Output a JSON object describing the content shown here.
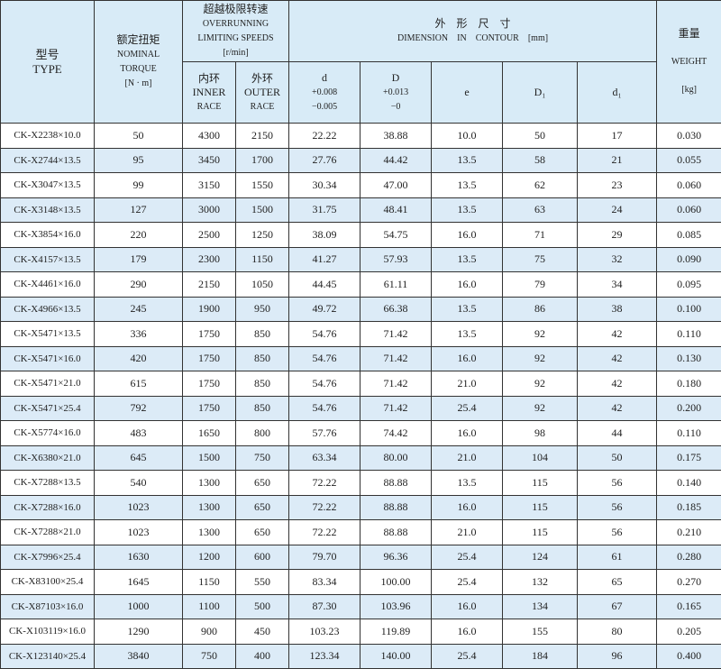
{
  "header": {
    "type_cn": "型号",
    "type_en": "TYPE",
    "torque_cn": "额定扭矩",
    "torque_en1": "NOMINAL",
    "torque_en2": "TORQUE",
    "torque_unit": "[N · m]",
    "speed_cn": "超越极限转速",
    "speed_en1": "OVERRUNNING",
    "speed_en2": "LIMITING SPEEDS",
    "speed_unit": "[r/min]",
    "inner_cn": "内环",
    "inner_en1": "INNER",
    "inner_en2": "RACE",
    "outer_cn": "外环",
    "outer_en1": "OUTER",
    "outer_en2": "RACE",
    "dim_cn": "外　形　尺　寸",
    "dim_en": "DIMENSION　IN　CONTOUR　[mm]",
    "d": "d",
    "d_tol1": "+0.008",
    "d_tol2": "−0.005",
    "D": "D",
    "D_tol1": "+0.013",
    "D_tol2": "−0",
    "e": "e",
    "D1": "D₁",
    "d1": "d₁",
    "weight_cn": "重量",
    "weight_en": "WEIGHT",
    "weight_unit": "[kg]"
  },
  "rows": [
    [
      "CK-X2238×10.0",
      "50",
      "4300",
      "2150",
      "22.22",
      "38.88",
      "10.0",
      "50",
      "17",
      "0.030"
    ],
    [
      "CK-X2744×13.5",
      "95",
      "3450",
      "1700",
      "27.76",
      "44.42",
      "13.5",
      "58",
      "21",
      "0.055"
    ],
    [
      "CK-X3047×13.5",
      "99",
      "3150",
      "1550",
      "30.34",
      "47.00",
      "13.5",
      "62",
      "23",
      "0.060"
    ],
    [
      "CK-X3148×13.5",
      "127",
      "3000",
      "1500",
      "31.75",
      "48.41",
      "13.5",
      "63",
      "24",
      "0.060"
    ],
    [
      "CK-X3854×16.0",
      "220",
      "2500",
      "1250",
      "38.09",
      "54.75",
      "16.0",
      "71",
      "29",
      "0.085"
    ],
    [
      "CK-X4157×13.5",
      "179",
      "2300",
      "1150",
      "41.27",
      "57.93",
      "13.5",
      "75",
      "32",
      "0.090"
    ],
    [
      "CK-X4461×16.0",
      "290",
      "2150",
      "1050",
      "44.45",
      "61.11",
      "16.0",
      "79",
      "34",
      "0.095"
    ],
    [
      "CK-X4966×13.5",
      "245",
      "1900",
      "950",
      "49.72",
      "66.38",
      "13.5",
      "86",
      "38",
      "0.100"
    ],
    [
      "CK-X5471×13.5",
      "336",
      "1750",
      "850",
      "54.76",
      "71.42",
      "13.5",
      "92",
      "42",
      "0.110"
    ],
    [
      "CK-X5471×16.0",
      "420",
      "1750",
      "850",
      "54.76",
      "71.42",
      "16.0",
      "92",
      "42",
      "0.130"
    ],
    [
      "CK-X5471×21.0",
      "615",
      "1750",
      "850",
      "54.76",
      "71.42",
      "21.0",
      "92",
      "42",
      "0.180"
    ],
    [
      "CK-X5471×25.4",
      "792",
      "1750",
      "850",
      "54.76",
      "71.42",
      "25.4",
      "92",
      "42",
      "0.200"
    ],
    [
      "CK-X5774×16.0",
      "483",
      "1650",
      "800",
      "57.76",
      "74.42",
      "16.0",
      "98",
      "44",
      "0.110"
    ],
    [
      "CK-X6380×21.0",
      "645",
      "1500",
      "750",
      "63.34",
      "80.00",
      "21.0",
      "104",
      "50",
      "0.175"
    ],
    [
      "CK-X7288×13.5",
      "540",
      "1300",
      "650",
      "72.22",
      "88.88",
      "13.5",
      "115",
      "56",
      "0.140"
    ],
    [
      "CK-X7288×16.0",
      "1023",
      "1300",
      "650",
      "72.22",
      "88.88",
      "16.0",
      "115",
      "56",
      "0.185"
    ],
    [
      "CK-X7288×21.0",
      "1023",
      "1300",
      "650",
      "72.22",
      "88.88",
      "21.0",
      "115",
      "56",
      "0.210"
    ],
    [
      "CK-X7996×25.4",
      "1630",
      "1200",
      "600",
      "79.70",
      "96.36",
      "25.4",
      "124",
      "61",
      "0.280"
    ],
    [
      "CK-X83100×25.4",
      "1645",
      "1150",
      "550",
      "83.34",
      "100.00",
      "25.4",
      "132",
      "65",
      "0.270"
    ],
    [
      "CK-X87103×16.0",
      "1000",
      "1100",
      "500",
      "87.30",
      "103.96",
      "16.0",
      "134",
      "67",
      "0.165"
    ],
    [
      "CK-X103119×16.0",
      "1290",
      "900",
      "450",
      "103.23",
      "119.89",
      "16.0",
      "155",
      "80",
      "0.205"
    ],
    [
      "CK-X123140×25.4",
      "3840",
      "750",
      "400",
      "123.34",
      "140.00",
      "25.4",
      "184",
      "96",
      "0.400"
    ]
  ]
}
